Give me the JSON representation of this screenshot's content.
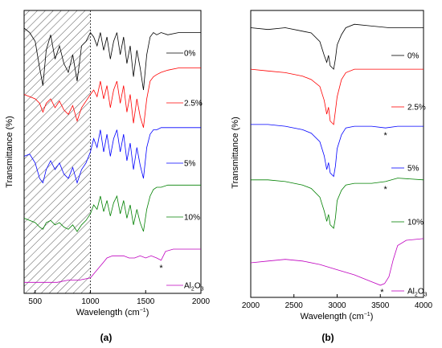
{
  "chart_data": [
    {
      "type": "line",
      "panel_label": "(a)",
      "xlabel": "Wavelength (cm",
      "xlabel_sup": "−1",
      "xlabel_end": ")",
      "ylabel": "Transmittance (%)",
      "xlim": [
        400,
        2000
      ],
      "xticks": [
        500,
        1000,
        1500,
        2000
      ],
      "xticklabels": [
        "500",
        "1000",
        "1500",
        "2000"
      ],
      "hatched_region": [
        400,
        1000
      ],
      "dotted_line_at": 1000,
      "annotations": [
        {
          "text": "*",
          "x": 1640,
          "series": "Al2O3"
        }
      ],
      "series": [
        {
          "name": "0%",
          "color": "#000000",
          "x": [
            400,
            450,
            500,
            540,
            570,
            600,
            640,
            680,
            720,
            760,
            800,
            840,
            880,
            920,
            960,
            1000,
            1030,
            1060,
            1090,
            1120,
            1150,
            1180,
            1210,
            1240,
            1270,
            1300,
            1330,
            1360,
            1390,
            1420,
            1450,
            1480,
            1510,
            1540,
            1570,
            1600,
            1640,
            1700,
            1800,
            1900,
            2000
          ],
          "y": [
            88,
            86,
            82,
            70,
            62,
            78,
            85,
            74,
            80,
            72,
            68,
            76,
            64,
            80,
            82,
            86,
            84,
            80,
            86,
            78,
            84,
            74,
            82,
            86,
            76,
            84,
            72,
            80,
            66,
            78,
            70,
            60,
            76,
            84,
            86,
            85,
            86,
            85,
            86,
            86,
            86
          ]
        },
        {
          "name": "2.5%",
          "color": "#ff0000",
          "x": [
            400,
            450,
            500,
            540,
            570,
            600,
            640,
            680,
            720,
            760,
            800,
            840,
            880,
            920,
            960,
            1000,
            1030,
            1060,
            1090,
            1120,
            1150,
            1180,
            1210,
            1240,
            1270,
            1300,
            1330,
            1360,
            1390,
            1420,
            1450,
            1480,
            1510,
            1540,
            1570,
            1600,
            1640,
            1700,
            1800,
            1900,
            2000
          ],
          "y": [
            58,
            57,
            56,
            54,
            50,
            54,
            56,
            52,
            55,
            51,
            49,
            53,
            46,
            52,
            55,
            58,
            60,
            57,
            64,
            56,
            62,
            52,
            60,
            64,
            54,
            62,
            50,
            58,
            45,
            56,
            48,
            43,
            56,
            64,
            66,
            67,
            68,
            69,
            70,
            70,
            70
          ]
        },
        {
          "name": "5%",
          "color": "#0000ff",
          "x": [
            400,
            450,
            500,
            540,
            570,
            600,
            640,
            680,
            720,
            760,
            800,
            840,
            880,
            920,
            960,
            1000,
            1030,
            1060,
            1090,
            1120,
            1150,
            1180,
            1210,
            1240,
            1270,
            1300,
            1330,
            1360,
            1390,
            1420,
            1450,
            1480,
            1510,
            1540,
            1570,
            1600,
            1640,
            1700,
            1800,
            1900,
            2000
          ],
          "y": [
            30,
            31,
            27,
            20,
            18,
            24,
            28,
            24,
            27,
            22,
            20,
            25,
            18,
            24,
            27,
            32,
            38,
            34,
            42,
            32,
            40,
            30,
            38,
            42,
            32,
            40,
            28,
            36,
            24,
            34,
            26,
            20,
            34,
            40,
            42,
            42,
            43,
            43,
            43,
            43,
            43
          ]
        },
        {
          "name": "10%",
          "color": "#008000",
          "x": [
            400,
            450,
            500,
            540,
            570,
            600,
            640,
            680,
            720,
            760,
            800,
            840,
            880,
            920,
            960,
            1000,
            1030,
            1060,
            1090,
            1120,
            1150,
            1180,
            1210,
            1240,
            1270,
            1300,
            1330,
            1360,
            1390,
            1420,
            1450,
            1480,
            1510,
            1540,
            1570,
            1600,
            1640,
            1700,
            1800,
            1900,
            2000
          ],
          "y": [
            2,
            1,
            0,
            -2,
            -3,
            0,
            1,
            -1,
            0,
            -2,
            -3,
            -1,
            -4,
            -1,
            1,
            4,
            8,
            6,
            12,
            5,
            10,
            3,
            9,
            12,
            4,
            10,
            2,
            8,
            -1,
            6,
            0,
            -4,
            6,
            12,
            15,
            16,
            16,
            17,
            17,
            17,
            17
          ]
        },
        {
          "name": "Al2O3",
          "color": "#bf00bf",
          "x": [
            400,
            500,
            600,
            700,
            800,
            900,
            1000,
            1050,
            1100,
            1150,
            1200,
            1250,
            1300,
            1350,
            1400,
            1450,
            1500,
            1550,
            1600,
            1640,
            1680,
            1750,
            1850,
            2000
          ],
          "y": [
            -27,
            -27,
            -27,
            -27,
            -26,
            -26,
            -25,
            -22,
            -19,
            -16,
            -15,
            -15,
            -15,
            -16,
            -16,
            -15,
            -16,
            -15,
            -16,
            -17,
            -13,
            -12,
            -12,
            -12
          ]
        }
      ]
    },
    {
      "type": "line",
      "panel_label": "(b)",
      "xlabel": "Wavelength (cm",
      "xlabel_sup": "−1",
      "xlabel_end": ")",
      "ylabel": "Transmittance (%)",
      "xlim": [
        2000,
        4000
      ],
      "xticks": [
        2000,
        2500,
        3000,
        3500,
        4000
      ],
      "xticklabels": [
        "2000",
        "2500",
        "3000",
        "3500",
        "4000"
      ],
      "annotations": [
        {
          "text": "*",
          "x": 3560,
          "series": "5%"
        },
        {
          "text": "*",
          "x": 3560,
          "series": "10%"
        },
        {
          "text": "*",
          "x": 3520,
          "series": "Al2O3"
        }
      ],
      "series": [
        {
          "name": "0%",
          "color": "#000000",
          "x": [
            2000,
            2200,
            2400,
            2600,
            2700,
            2800,
            2850,
            2880,
            2900,
            2920,
            2960,
            2980,
            3000,
            3050,
            3100,
            3200,
            3400,
            3600,
            3800,
            4000
          ],
          "y": [
            86,
            85,
            86,
            84,
            83,
            78,
            70,
            66,
            70,
            64,
            62,
            68,
            76,
            82,
            86,
            88,
            87,
            86,
            86,
            86
          ]
        },
        {
          "name": "2.5%",
          "color": "#ff0000",
          "x": [
            2000,
            2200,
            2400,
            2600,
            2700,
            2800,
            2850,
            2880,
            2900,
            2920,
            2960,
            2980,
            3000,
            3050,
            3100,
            3200,
            3400,
            3600,
            3800,
            4000
          ],
          "y": [
            62,
            61,
            60,
            58,
            56,
            52,
            44,
            36,
            40,
            32,
            30,
            38,
            46,
            56,
            60,
            62,
            62,
            62,
            62,
            62
          ]
        },
        {
          "name": "5%",
          "color": "#0000ff",
          "x": [
            2000,
            2200,
            2400,
            2600,
            2700,
            2800,
            2850,
            2880,
            2900,
            2920,
            2960,
            2980,
            3000,
            3050,
            3100,
            3200,
            3400,
            3560,
            3700,
            4000
          ],
          "y": [
            30,
            30,
            29,
            27,
            25,
            20,
            12,
            4,
            8,
            2,
            0,
            6,
            16,
            24,
            28,
            29,
            29,
            28,
            29,
            29
          ]
        },
        {
          "name": "10%",
          "color": "#008000",
          "x": [
            2000,
            2200,
            2400,
            2600,
            2700,
            2800,
            2850,
            2880,
            2900,
            2920,
            2960,
            2980,
            3000,
            3050,
            3100,
            3200,
            3400,
            3560,
            3700,
            4000
          ],
          "y": [
            -2,
            -2,
            -3,
            -5,
            -7,
            -12,
            -20,
            -26,
            -22,
            -28,
            -30,
            -24,
            -14,
            -8,
            -5,
            -4,
            -4,
            -3,
            -1,
            -2
          ]
        },
        {
          "name": "Al2O3",
          "color": "#bf00bf",
          "x": [
            2000,
            2200,
            2400,
            2600,
            2800,
            3000,
            3200,
            3400,
            3500,
            3550,
            3600,
            3650,
            3700,
            3800,
            4000
          ],
          "y": [
            -50,
            -49,
            -48,
            -49,
            -51,
            -54,
            -57,
            -61,
            -63,
            -62,
            -58,
            -48,
            -40,
            -37,
            -36
          ]
        }
      ]
    }
  ]
}
